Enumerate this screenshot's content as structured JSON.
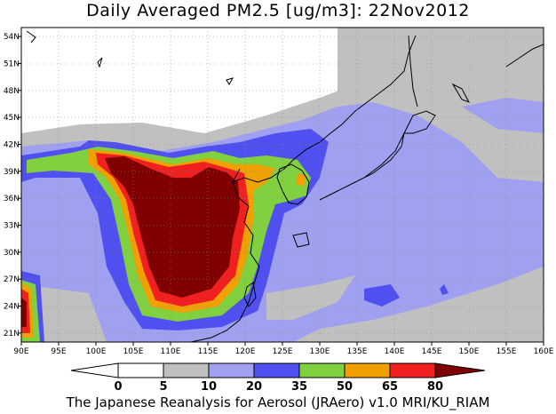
{
  "title": "Daily Averaged PM2.5 [ug/m3]: 22Nov2012",
  "footer": "The Japanese Reanalysis for Aerosol (JRAero) v1.0 MRI/KU_RIAM",
  "map": {
    "lon_range": [
      90,
      160
    ],
    "lat_range": [
      20,
      55
    ],
    "lon_ticks": [
      "90E",
      "95E",
      "100E",
      "105E",
      "110E",
      "115E",
      "120E",
      "125E",
      "130E",
      "135E",
      "140E",
      "145E",
      "150E",
      "155E",
      "160E"
    ],
    "lat_ticks": [
      "21N",
      "24N",
      "27N",
      "30N",
      "33N",
      "36N",
      "39N",
      "42N",
      "45N",
      "48N",
      "51N",
      "54N"
    ],
    "grid": true
  },
  "colorbar": {
    "levels": [
      "0",
      "5",
      "10",
      "20",
      "35",
      "50",
      "65",
      "80"
    ],
    "colors": [
      "#ffffff",
      "#c0c0c0",
      "#a0a0f0",
      "#5050f0",
      "#80d040",
      "#f0a000",
      "#f02020",
      "#800000"
    ]
  }
}
